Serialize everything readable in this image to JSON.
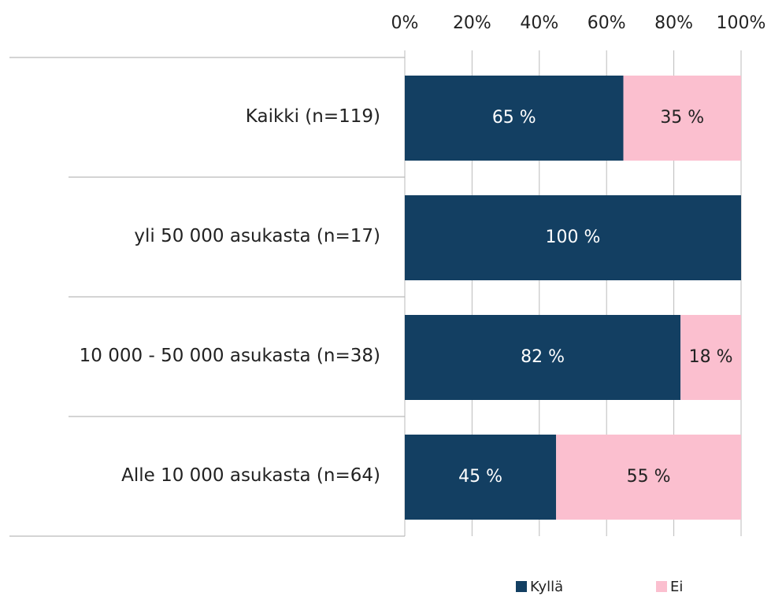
{
  "chart_data": {
    "type": "stacked-bar-horizontal",
    "categories": [
      "Kaikki (n=119)",
      "yli 50 000 asukasta (n=17)",
      "10 000 - 50 000 asukasta (n=38)",
      "Alle 10 000 asukasta (n=64)"
    ],
    "series": [
      {
        "name": "Kyllä",
        "color": "#133f62",
        "values": [
          65,
          100,
          82,
          45
        ],
        "value_labels": [
          "65 %",
          "100 %",
          "82 %",
          "45 %"
        ]
      },
      {
        "name": "Ei",
        "color": "#fbbfcf",
        "values": [
          35,
          0,
          18,
          55
        ],
        "value_labels": [
          "35 %",
          null,
          "18 %",
          "55 %"
        ]
      }
    ],
    "xlim": [
      0,
      100
    ],
    "xticks": [
      {
        "value": 0,
        "label": "0%"
      },
      {
        "value": 20,
        "label": "20%"
      },
      {
        "value": 40,
        "label": "40%"
      },
      {
        "value": 60,
        "label": "60%"
      },
      {
        "value": 80,
        "label": "80%"
      },
      {
        "value": 100,
        "label": "100%"
      }
    ],
    "grid": true,
    "legend": "bottom"
  }
}
